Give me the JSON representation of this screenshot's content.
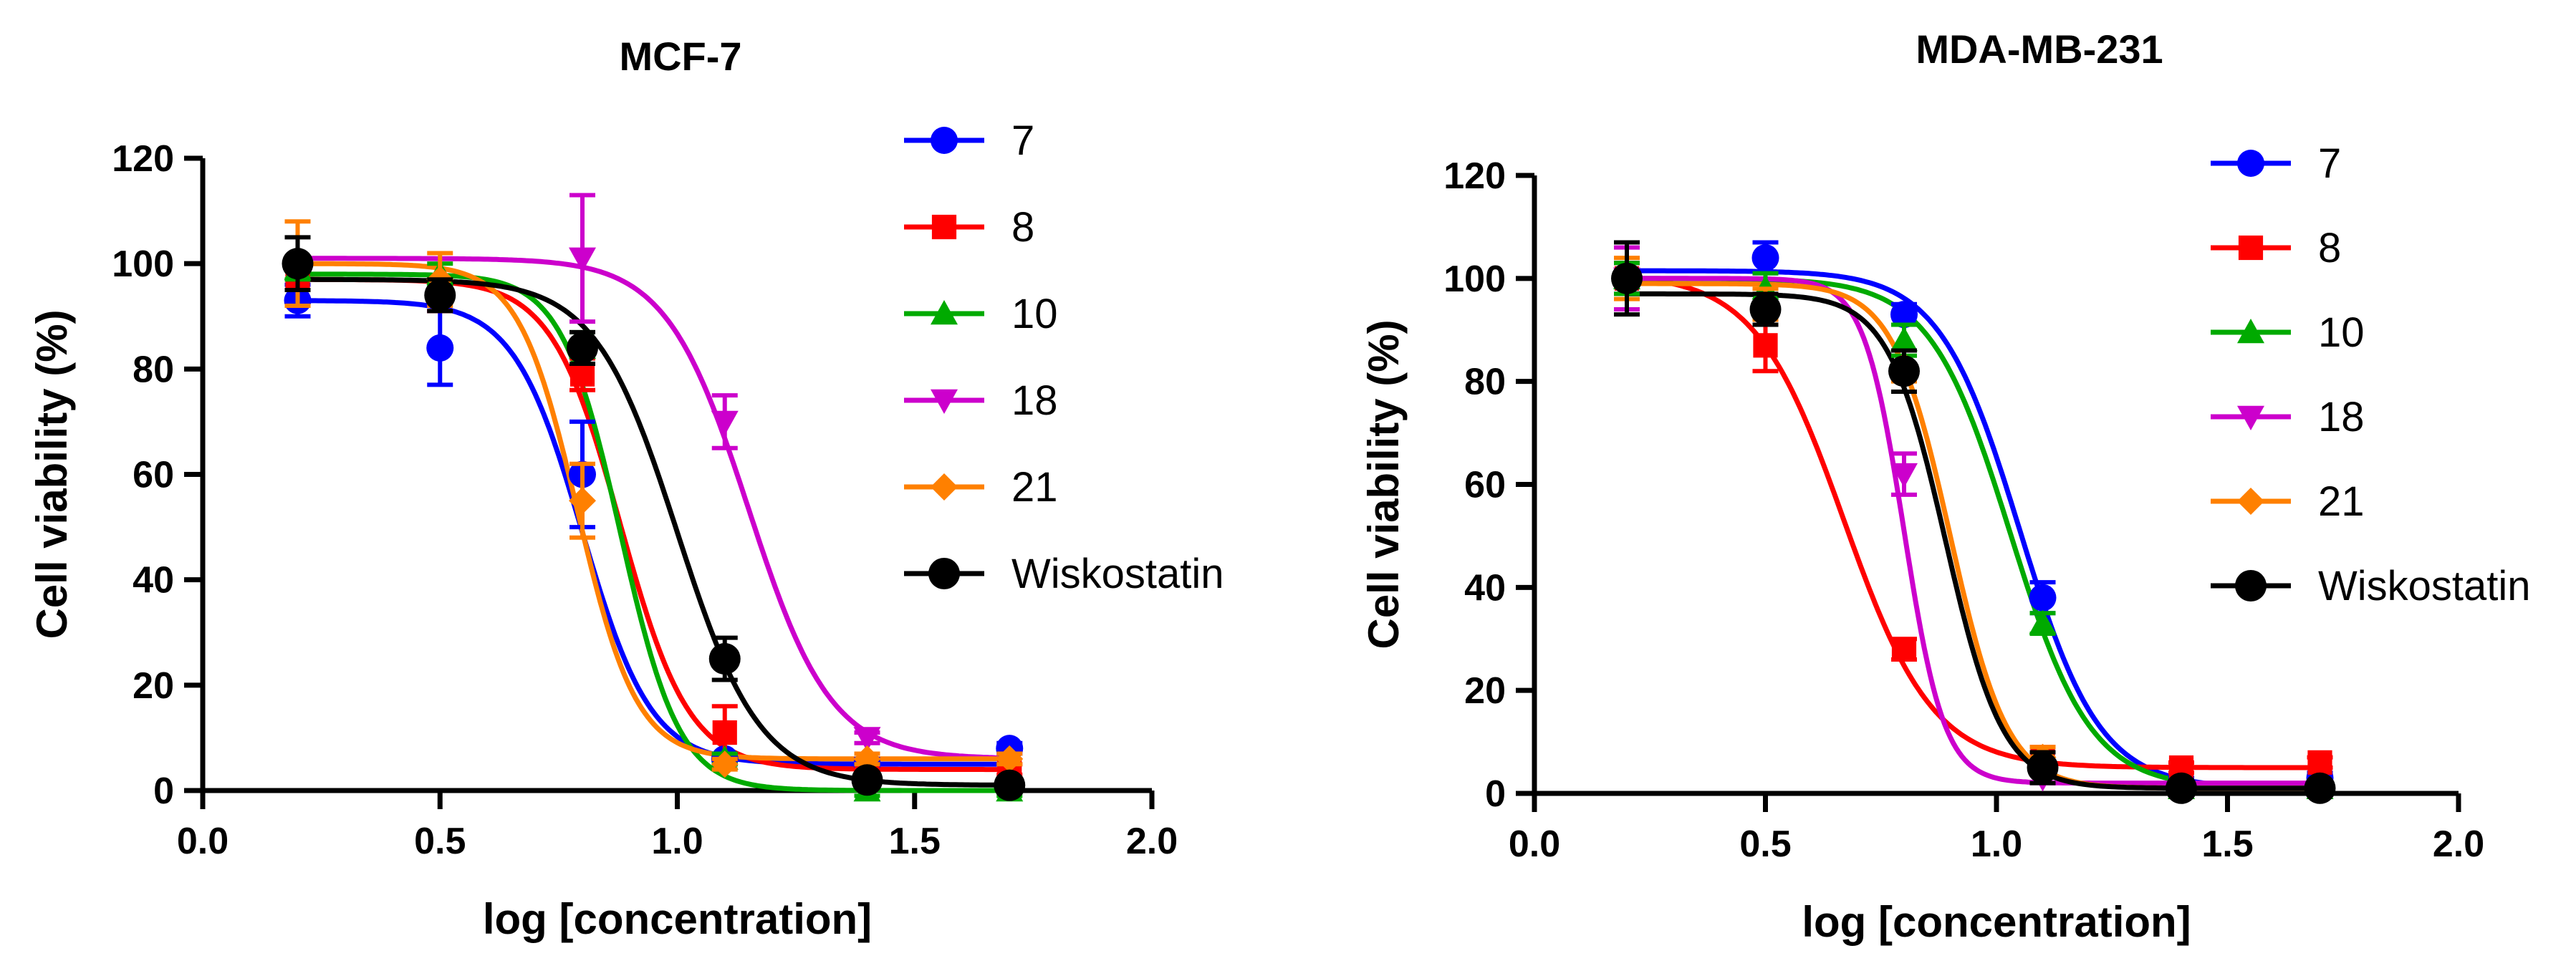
{
  "chart_data": [
    {
      "type": "line",
      "subtype": "dose-response (sigmoidal fit with scatter points and error bars)",
      "title": "MCF-7",
      "xlabel": "log [concentration]",
      "ylabel": "Cell viability (%)",
      "xlim": [
        0,
        2
      ],
      "ylim": [
        0,
        120
      ],
      "xticks": [
        "0.0",
        "0.5",
        "1.0",
        "1.5",
        "2.0"
      ],
      "yticks": [
        "0",
        "20",
        "40",
        "60",
        "80",
        "100",
        "120"
      ],
      "legend_position": "top-right",
      "series": [
        {
          "name": "7",
          "color": "#0000FF",
          "marker": "circle",
          "x": [
            0.2,
            0.5,
            0.8,
            1.1,
            1.4,
            1.7
          ],
          "y": [
            93,
            84,
            60,
            6,
            5,
            8
          ],
          "err": [
            3,
            7,
            10,
            1,
            1,
            1
          ],
          "fit": {
            "bottom": 5,
            "top": 93,
            "logIC50": 0.8,
            "hill": 6
          }
        },
        {
          "name": "8",
          "color": "#FF0000",
          "marker": "square",
          "x": [
            0.2,
            0.5,
            0.8,
            1.1,
            1.4,
            1.7
          ],
          "y": [
            97,
            94,
            79,
            11,
            3,
            4
          ],
          "err": [
            2,
            3,
            3,
            5,
            1,
            1
          ],
          "fit": {
            "bottom": 4,
            "top": 97,
            "logIC50": 0.88,
            "hill": 6
          }
        },
        {
          "name": "10",
          "color": "#00AA00",
          "marker": "triangle-up",
          "x": [
            0.2,
            0.5,
            0.8,
            1.1,
            1.4,
            1.7
          ],
          "y": [
            99,
            98,
            84,
            6,
            0,
            0
          ],
          "err": [
            2,
            2,
            3,
            1,
            1,
            1
          ],
          "fit": {
            "bottom": 0,
            "top": 98,
            "logIC50": 0.88,
            "hill": 7
          }
        },
        {
          "name": "18",
          "color": "#CC00CC",
          "marker": "triangle-down",
          "x": [
            0.8,
            1.1,
            1.4
          ],
          "y": [
            101,
            70,
            10
          ],
          "err": [
            12,
            5,
            1
          ],
          "fit": {
            "bottom": 6,
            "top": 101,
            "logIC50": 1.15,
            "hill": 5
          }
        },
        {
          "name": "21",
          "color": "#FF8000",
          "marker": "diamond",
          "x": [
            0.2,
            0.5,
            0.8,
            1.1,
            1.4,
            1.7
          ],
          "y": [
            100,
            97,
            55,
            5,
            6,
            6
          ],
          "err": [
            8,
            5,
            7,
            1,
            1,
            1
          ],
          "fit": {
            "bottom": 6,
            "top": 100,
            "logIC50": 0.79,
            "hill": 7
          }
        },
        {
          "name": "Wiskostatin",
          "color": "#000000",
          "marker": "circle",
          "x": [
            0.2,
            0.5,
            0.8,
            1.1,
            1.4,
            1.7
          ],
          "y": [
            100,
            94,
            84,
            25,
            2,
            1
          ],
          "err": [
            5,
            3,
            3,
            4,
            1,
            1
          ],
          "fit": {
            "bottom": 1,
            "top": 97,
            "logIC50": 1.0,
            "hill": 5
          }
        }
      ]
    },
    {
      "type": "line",
      "subtype": "dose-response (sigmoidal fit with scatter points and error bars)",
      "title": "MDA-MB-231",
      "xlabel": "log [concentration]",
      "ylabel": "Cell viability (%)",
      "xlim": [
        0,
        2
      ],
      "ylim": [
        0,
        120
      ],
      "xticks": [
        "0.0",
        "0.5",
        "1.0",
        "1.5",
        "2.0"
      ],
      "yticks": [
        "0",
        "20",
        "40",
        "60",
        "80",
        "100",
        "120"
      ],
      "legend_position": "top-right",
      "series": [
        {
          "name": "7",
          "color": "#0000FF",
          "marker": "circle",
          "x": [
            0.2,
            0.5,
            0.8,
            1.1,
            1.4,
            1.7
          ],
          "y": [
            100,
            104,
            93,
            38,
            2,
            3
          ],
          "err": [
            3,
            3,
            2,
            3,
            1,
            1
          ],
          "fit": {
            "bottom": 1,
            "top": 101.5,
            "logIC50": 1.05,
            "hill": 5
          }
        },
        {
          "name": "8",
          "color": "#FF0000",
          "marker": "square",
          "x": [
            0.2,
            0.5,
            0.8,
            1.1,
            1.4,
            1.7
          ],
          "y": [
            100,
            87,
            28,
            7,
            5,
            6
          ],
          "err": [
            3,
            5,
            2,
            2,
            1,
            1
          ],
          "fit": {
            "bottom": 5,
            "top": 101,
            "logIC50": 0.67,
            "hill": 4.5
          }
        },
        {
          "name": "10",
          "color": "#00AA00",
          "marker": "triangle-up",
          "x": [
            0.2,
            0.5,
            0.8,
            1.1,
            1.4,
            1.7
          ],
          "y": [
            100,
            98,
            88,
            33,
            1,
            1
          ],
          "err": [
            3,
            3,
            3,
            2,
            1,
            1
          ],
          "fit": {
            "bottom": 1,
            "top": 100,
            "logIC50": 1.03,
            "hill": 5
          }
        },
        {
          "name": "18",
          "color": "#CC00CC",
          "marker": "triangle-down",
          "x": [
            0.2,
            0.8,
            1.1
          ],
          "y": [
            100,
            62,
            3
          ],
          "err": [
            6,
            4,
            1
          ],
          "fit": {
            "bottom": 2,
            "top": 100,
            "logIC50": 0.8,
            "hill": 10
          }
        },
        {
          "name": "21",
          "color": "#FF8000",
          "marker": "diamond",
          "x": [
            0.2,
            0.5,
            0.8,
            1.1,
            1.4,
            1.7
          ],
          "y": [
            100,
            95,
            83,
            7,
            1,
            1
          ],
          "err": [
            4,
            3,
            3,
            2,
            1,
            1
          ],
          "fit": {
            "bottom": 1,
            "top": 99,
            "logIC50": 0.9,
            "hill": 7
          }
        },
        {
          "name": "Wiskostatin",
          "color": "#000000",
          "marker": "circle",
          "x": [
            0.2,
            0.5,
            0.8,
            1.1,
            1.4,
            1.7
          ],
          "y": [
            100,
            94,
            82,
            5,
            1,
            1
          ],
          "err": [
            7,
            3,
            4,
            3,
            1,
            1
          ],
          "fit": {
            "bottom": 1,
            "top": 97,
            "logIC50": 0.89,
            "hill": 7
          }
        }
      ]
    }
  ]
}
